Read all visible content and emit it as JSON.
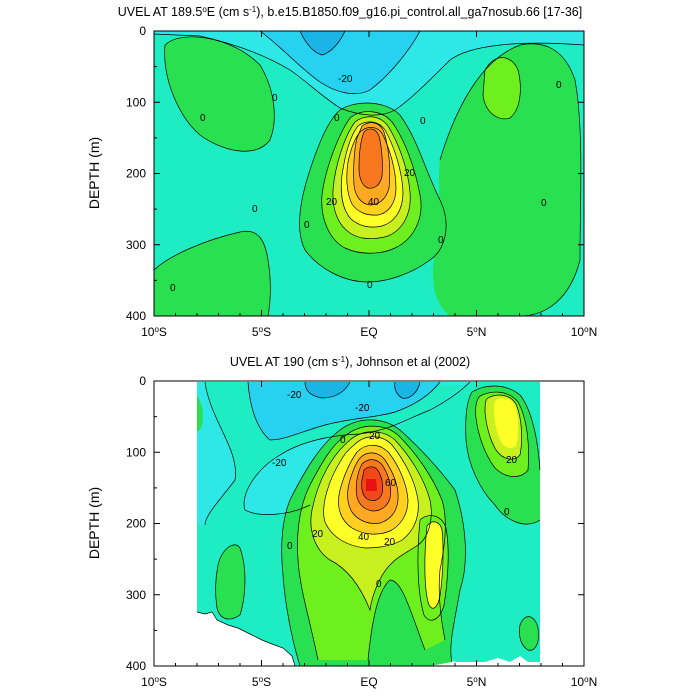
{
  "chart_data": [
    {
      "type": "contour",
      "title_main": "UVEL AT 189.5",
      "title_sup": "o",
      "title_mid": "E (cm s",
      "title_sup2": "-1",
      "title_end": "), b.e15.B1850.f09_g16.pi_control.all_ga7nosub.66 [17-36]",
      "ylabel": "DEPTH (m)",
      "xlim": [
        -10,
        10
      ],
      "ylim": [
        400,
        0
      ],
      "x_ticks": [
        {
          "value": -10,
          "label": "10",
          "sup": "o",
          "suffix": "S"
        },
        {
          "value": -5,
          "label": "5",
          "sup": "o",
          "suffix": "S"
        },
        {
          "value": 0,
          "label": "EQ",
          "sup": "",
          "suffix": ""
        },
        {
          "value": 5,
          "label": "5",
          "sup": "o",
          "suffix": "N"
        },
        {
          "value": 10,
          "label": "10",
          "sup": "o",
          "suffix": "N"
        }
      ],
      "y_ticks": [
        0,
        100,
        200,
        300,
        400
      ],
      "contour_interval": 10,
      "max_value": 60,
      "core": {
        "lon": 0,
        "depth": 160
      },
      "contour_labels": [
        "-20",
        "0",
        "0",
        "0",
        "0",
        "0",
        "0",
        "0",
        "0",
        "20",
        "20",
        "40",
        "0",
        "0",
        "0"
      ]
    },
    {
      "type": "contour",
      "title_main": "UVEL AT 190 (cm s",
      "title_sup": "-1",
      "title_end": "), Johnson et al (2002)",
      "ylabel": "DEPTH (m)",
      "xlim": [
        -10,
        10
      ],
      "ylim": [
        400,
        0
      ],
      "x_ticks": [
        {
          "value": -10,
          "label": "10",
          "sup": "o",
          "suffix": "S"
        },
        {
          "value": -5,
          "label": "5",
          "sup": "o",
          "suffix": "S"
        },
        {
          "value": 0,
          "label": "EQ",
          "sup": "",
          "suffix": ""
        },
        {
          "value": 5,
          "label": "5",
          "sup": "o",
          "suffix": "N"
        },
        {
          "value": 10,
          "label": "10",
          "sup": "o",
          "suffix": "N"
        }
      ],
      "y_ticks": [
        0,
        100,
        200,
        300,
        400
      ],
      "contour_interval": 10,
      "max_value": 100,
      "core": {
        "lon": 0,
        "depth": 150
      },
      "data_coverage_lon": [
        -8,
        8
      ],
      "contour_labels": [
        "-20",
        "-20",
        "-20",
        "0",
        "20",
        "60",
        "20",
        "40",
        "20",
        "0",
        "20",
        "0",
        "0"
      ]
    }
  ],
  "colors": {
    "neg30": "#1ab4e6",
    "neg20": "#26d2f0",
    "neg10": "#2ee8e8",
    "zero": "#1eecc2",
    "pos0": "#28e050",
    "pos10": "#6ef01e",
    "pos20": "#c8f01e",
    "pos30": "#ffff28",
    "pos40": "#ffd020",
    "pos50": "#ffa822",
    "pos60": "#f87820",
    "pos70": "#f04818",
    "pos90": "#e81010"
  }
}
